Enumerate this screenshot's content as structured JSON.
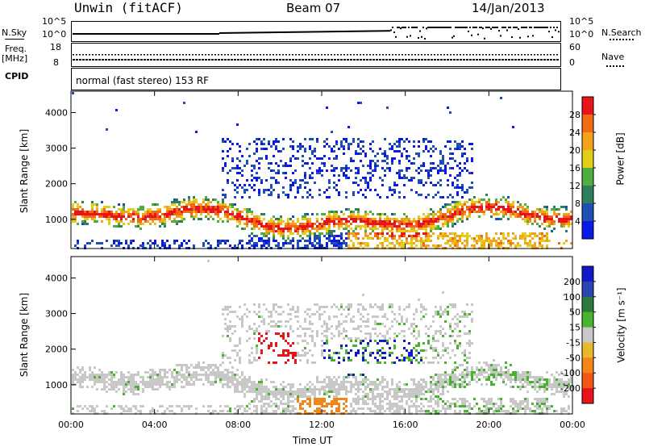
{
  "header": {
    "station": "Unwin (fitACF)",
    "beam": "Beam 07",
    "date": "14/Jan/2013"
  },
  "noise_panel": {
    "left_label": "N.Sky",
    "right_label": "N.Search",
    "left_ticks": [
      "10^5",
      "10^0"
    ],
    "right_ticks": [
      "10^5",
      "10^0"
    ]
  },
  "freq_panel": {
    "left_label_1": "Freq.",
    "left_label_2": "[MHz]",
    "right_label": "Nave",
    "left_ticks": [
      "18",
      "8"
    ],
    "right_ticks": [
      "60",
      "0"
    ]
  },
  "cpid": {
    "label": "CPID",
    "value": "normal (fast stereo) 153 RF"
  },
  "chart_data": [
    {
      "type": "heatmap",
      "ylabel": "Slant Range [km]",
      "xlabel": "",
      "ylim": [
        180,
        4600
      ],
      "yticks": [
        "1000",
        "2000",
        "3000",
        "4000"
      ],
      "colorbar_label": "Power [dB]",
      "colorbar_ticks": [
        "4",
        "8",
        "12",
        "16",
        "20",
        "24",
        "28"
      ],
      "colorbar_colors": [
        "#0a18e8",
        "#1f4fb5",
        "#2f7f5a",
        "#4fae3f",
        "#e3cc1a",
        "#f3a21a",
        "#f26a12",
        "#e8141a"
      ]
    },
    {
      "type": "heatmap",
      "ylabel": "Slant Range [km]",
      "xlabel": "Time UT",
      "ylim": [
        180,
        4600
      ],
      "yticks": [
        "1000",
        "2000",
        "3000",
        "4000"
      ],
      "xticks": [
        "00:00",
        "04:00",
        "08:00",
        "12:00",
        "16:00",
        "20:00",
        "00:00"
      ],
      "colorbar_label": "Velocity [m s⁻¹]",
      "colorbar_ticks": [
        "200",
        "100",
        "50",
        "15",
        "-15",
        "-50",
        "-100",
        "-200"
      ],
      "colorbar_colors": [
        "#1018c8",
        "#2a44b0",
        "#2d7a3c",
        "#49b22e",
        "#c8c8c8",
        "#e8b82a",
        "#f2861a",
        "#f35616",
        "#e8141a"
      ]
    }
  ]
}
